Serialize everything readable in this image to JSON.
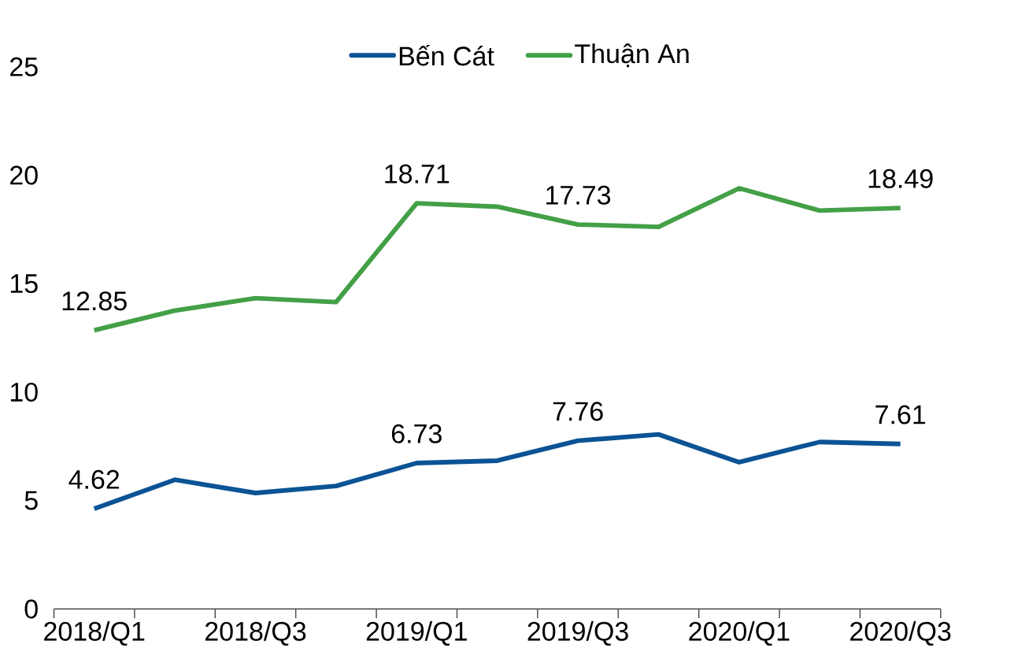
{
  "chart_data": {
    "type": "line",
    "categories": [
      "2018/Q1",
      null,
      "2018/Q3",
      null,
      "2019/Q1",
      null,
      "2019/Q3",
      null,
      "2020/Q1",
      null,
      "2020/Q3"
    ],
    "series": [
      {
        "name": "Bến Cát",
        "color": "#0b5394",
        "values": [
          4.62,
          5.96,
          5.35,
          5.67,
          6.73,
          6.84,
          7.76,
          8.05,
          6.77,
          7.7,
          7.61
        ],
        "value_labels": [
          "4.62",
          null,
          null,
          null,
          "6.73",
          null,
          "7.76",
          null,
          null,
          null,
          "7.61"
        ]
      },
      {
        "name": "Thuận An",
        "color": "#43a047",
        "values": [
          12.85,
          13.76,
          14.33,
          14.15,
          18.71,
          18.55,
          17.73,
          17.62,
          19.4,
          18.37,
          18.49
        ],
        "value_labels": [
          "12.85",
          null,
          null,
          null,
          "18.71",
          null,
          "17.73",
          null,
          null,
          null,
          "18.49"
        ]
      }
    ],
    "ylim": [
      0,
      25
    ],
    "yticks": [
      0,
      5,
      10,
      15,
      20,
      25
    ],
    "grid": false,
    "legend": "top",
    "marker": "none",
    "line_style": "solid"
  }
}
